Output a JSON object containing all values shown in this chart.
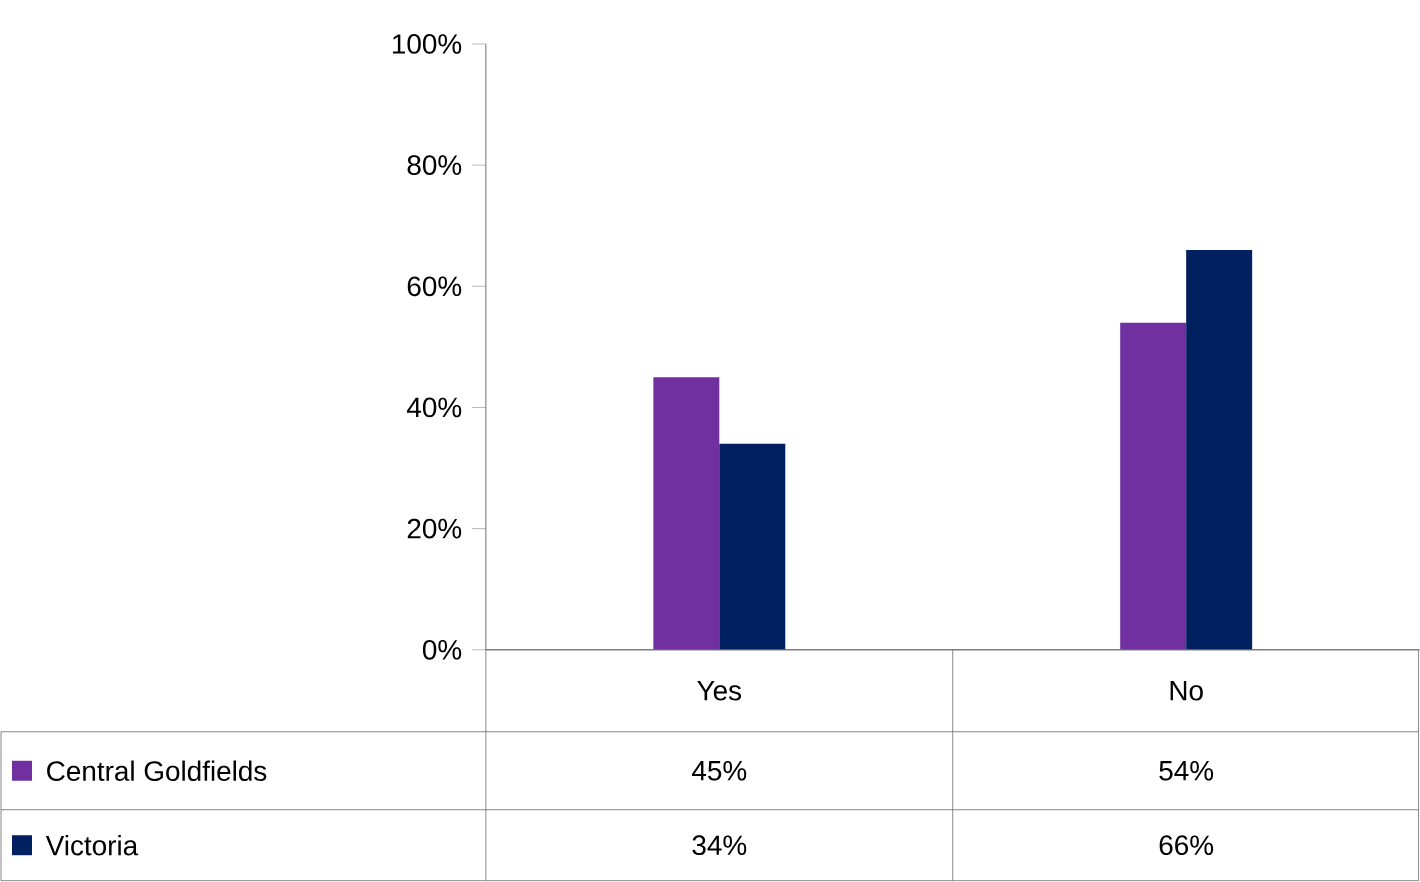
{
  "chart_data": {
    "type": "bar",
    "categories": [
      "Yes",
      "No"
    ],
    "series": [
      {
        "name": "Central Goldfields",
        "color": "#7030a0",
        "values": [
          45,
          54
        ],
        "value_labels": [
          "45%",
          "54%"
        ]
      },
      {
        "name": "Victoria",
        "color": "#002060",
        "values": [
          34,
          66
        ],
        "value_labels": [
          "34%",
          "66%"
        ]
      }
    ],
    "ylim": [
      0,
      100
    ],
    "yticks": [
      {
        "value": 0,
        "label": "0%"
      },
      {
        "value": 20,
        "label": "20%"
      },
      {
        "value": 40,
        "label": "40%"
      },
      {
        "value": 60,
        "label": "60%"
      },
      {
        "value": 80,
        "label": "80%"
      },
      {
        "value": 100,
        "label": "100%"
      }
    ],
    "legend": "bottom",
    "grid": false
  }
}
